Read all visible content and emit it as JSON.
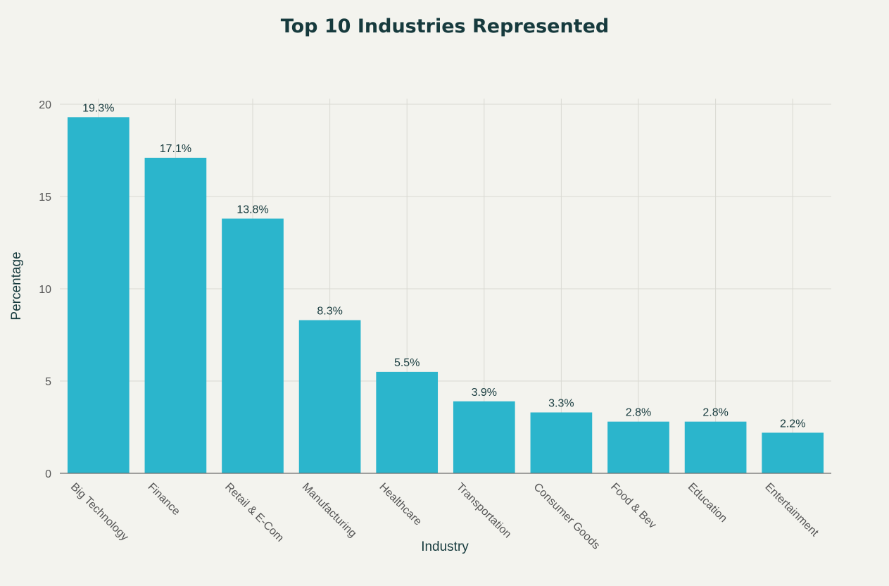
{
  "chart_data": {
    "type": "bar",
    "title": "Top 10 Industries Represented",
    "xlabel": "Industry",
    "ylabel": "Percentage",
    "ylim": [
      0,
      20
    ],
    "yticks": [
      0,
      5,
      10,
      15,
      20
    ],
    "grid": true,
    "bar_color": "#2bb5cc",
    "categories": [
      "Big Technology",
      "Finance",
      "Retail & E-Com",
      "Manufacturing",
      "Healthcare",
      "Transportation",
      "Consumer Goods",
      "Food & Bev",
      "Education",
      "Entertainment"
    ],
    "values": [
      19.3,
      17.1,
      13.8,
      8.3,
      5.5,
      3.9,
      3.3,
      2.8,
      2.8,
      2.2
    ],
    "data_labels": [
      "19.3%",
      "17.1%",
      "13.8%",
      "8.3%",
      "5.5%",
      "3.9%",
      "3.3%",
      "2.8%",
      "2.8%",
      "2.2%"
    ]
  }
}
